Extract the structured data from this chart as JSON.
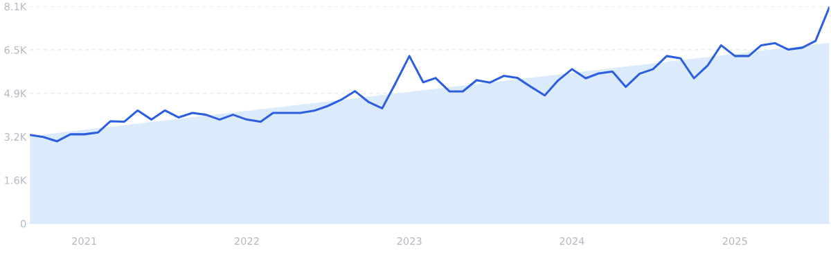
{
  "chart_data": {
    "type": "line",
    "x": [
      "2020-09",
      "2020-10",
      "2020-11",
      "2020-12",
      "2021-01",
      "2021-02",
      "2021-03",
      "2021-04",
      "2021-05",
      "2021-06",
      "2021-07",
      "2021-08",
      "2021-09",
      "2021-10",
      "2021-11",
      "2021-12",
      "2022-01",
      "2022-02",
      "2022-03",
      "2022-04",
      "2022-05",
      "2022-06",
      "2022-07",
      "2022-08",
      "2022-09",
      "2022-10",
      "2022-11",
      "2022-12",
      "2023-01",
      "2023-02",
      "2023-03",
      "2023-04",
      "2023-05",
      "2023-06",
      "2023-07",
      "2023-08",
      "2023-09",
      "2023-10",
      "2023-11",
      "2023-12",
      "2024-01",
      "2024-02",
      "2024-03",
      "2024-04",
      "2024-05",
      "2024-06",
      "2024-07",
      "2024-08",
      "2024-09",
      "2024-10",
      "2024-11",
      "2024-12",
      "2025-01",
      "2025-02",
      "2025-03",
      "2025-04",
      "2025-05",
      "2025-06",
      "2025-07",
      "2025-08"
    ],
    "series": [
      {
        "type": "area",
        "color": "#dcebfb",
        "x": [
          "2020-09",
          "2025-08"
        ],
        "values": [
          3260,
          6740
        ]
      },
      {
        "color": "#2c5fe0",
        "values": [
          3310,
          3230,
          3070,
          3330,
          3330,
          3400,
          3820,
          3800,
          4220,
          3880,
          4220,
          3960,
          4130,
          4060,
          3880,
          4060,
          3880,
          3800,
          4130,
          4130,
          4130,
          4210,
          4380,
          4620,
          4940,
          4540,
          4300,
          5240,
          6250,
          5270,
          5430,
          4930,
          4930,
          5350,
          5260,
          5510,
          5430,
          5100,
          4780,
          5340,
          5760,
          5420,
          5600,
          5670,
          5100,
          5590,
          5760,
          6250,
          6160,
          5420,
          5900,
          6650,
          6250,
          6250,
          6650,
          6730,
          6490,
          6560,
          6810,
          8070
        ]
      }
    ],
    "xlim": [
      "2020-09",
      "2025-08"
    ],
    "xticks": [
      {
        "value": "2021-01",
        "label": "2021"
      },
      {
        "value": "2022-01",
        "label": "2022"
      },
      {
        "value": "2023-01",
        "label": "2023"
      },
      {
        "value": "2024-01",
        "label": "2024"
      },
      {
        "value": "2025-01",
        "label": "2025"
      }
    ],
    "ylim": [
      0,
      8100
    ],
    "yticks": [
      0,
      {
        "value": 1620,
        "label": "1.6K"
      },
      {
        "value": 3240,
        "label": "3.2K"
      },
      {
        "value": 4860,
        "label": "4.9K"
      },
      {
        "value": 6480,
        "label": "6.5K"
      },
      {
        "value": 8100,
        "label": "8.1K"
      }
    ],
    "grid": "y",
    "marker": "none",
    "line_style": "solid"
  }
}
